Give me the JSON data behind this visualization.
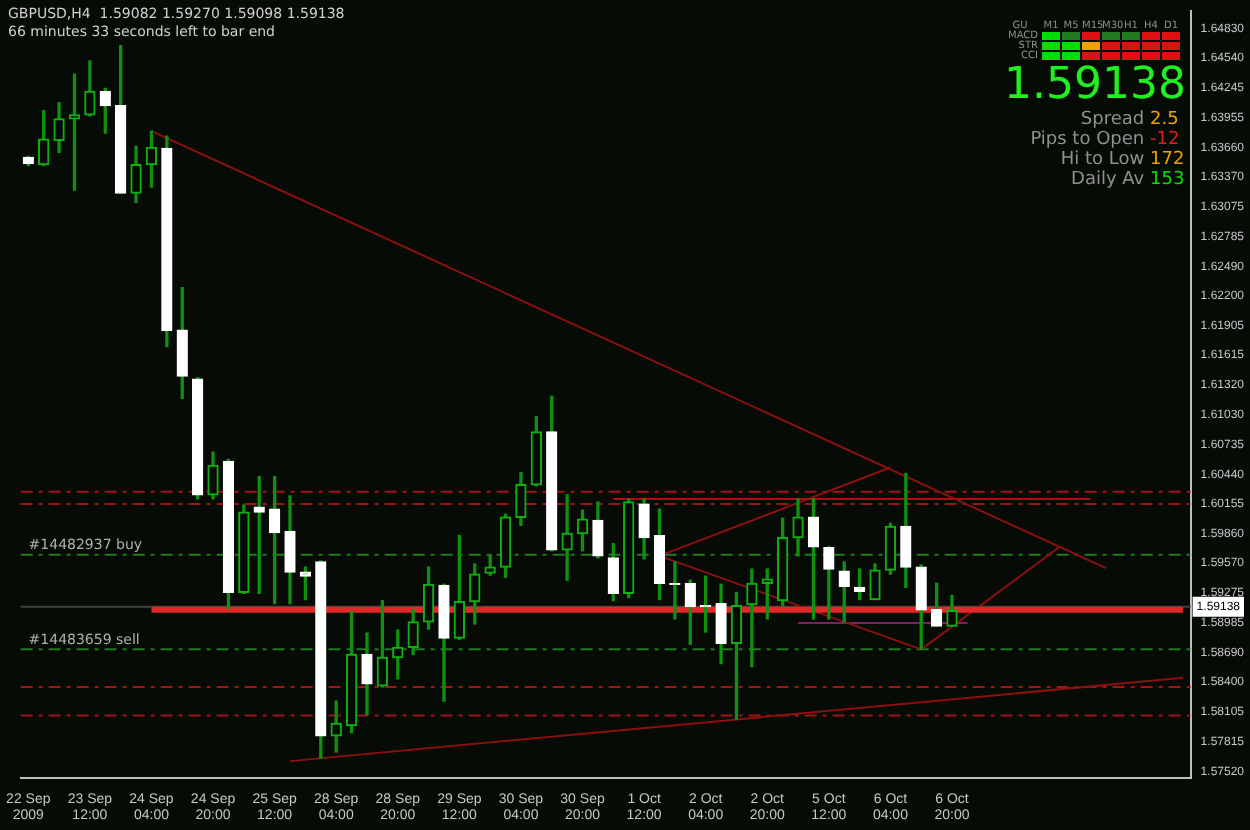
{
  "chart_data": {
    "type": "candlestick",
    "title": "GBPUSD,H4  1.59082 1.59270 1.59098 1.59138",
    "subtitle": "66 minutes 33 seconds left to bar end",
    "categories": [
      "22 Sep 2009",
      null,
      null,
      null,
      "23 Sep 12:00",
      null,
      null,
      null,
      "24 Sep 04:00",
      null,
      null,
      null,
      "24 Sep 20:00",
      null,
      null,
      null,
      "25 Sep 12:00",
      null,
      null,
      null,
      "28 Sep 04:00",
      null,
      null,
      null,
      "28 Sep 20:00",
      null,
      null,
      null,
      "29 Sep 12:00",
      null,
      null,
      null,
      "30 Sep 04:00",
      null,
      null,
      null,
      "30 Sep 20:00",
      null,
      null,
      null,
      "1 Oct 12:00",
      null,
      null,
      null,
      "2 Oct 04:00",
      null,
      null,
      null,
      "2 Oct 20:00",
      null,
      null,
      null,
      "5 Oct 12:00",
      null,
      null,
      null,
      "6 Oct 04:00",
      null,
      null,
      null,
      "6 Oct 20:00",
      null,
      null,
      null,
      null,
      null,
      null,
      null,
      null,
      null,
      null,
      null,
      null,
      null,
      null,
      null
    ],
    "ohlc": [
      [
        1.6356,
        1.6357,
        1.6348,
        1.635
      ],
      [
        1.6349,
        1.6402,
        1.6348,
        1.6374
      ],
      [
        1.6373,
        1.641,
        1.6361,
        1.6394
      ],
      [
        1.6394,
        1.6438,
        1.6324,
        1.6398
      ],
      [
        1.6398,
        1.6451,
        1.6397,
        1.6421
      ],
      [
        1.6421,
        1.6424,
        1.638,
        1.6407
      ],
      [
        1.6407,
        1.6466,
        1.6321,
        1.6321
      ],
      [
        1.6321,
        1.6367,
        1.6312,
        1.6349
      ],
      [
        1.6349,
        1.6382,
        1.6327,
        1.6366
      ],
      [
        1.6365,
        1.6377,
        1.617,
        1.6186
      ],
      [
        1.6186,
        1.6228,
        1.6119,
        1.6141
      ],
      [
        1.6138,
        1.6139,
        1.602,
        1.6024
      ],
      [
        1.6024,
        1.6066,
        1.602,
        1.6053
      ],
      [
        1.6057,
        1.6059,
        1.5912,
        1.5928
      ],
      [
        1.5928,
        1.6014,
        1.5927,
        1.6007
      ],
      [
        1.6012,
        1.6042,
        1.5927,
        1.6007
      ],
      [
        1.601,
        1.6042,
        1.5917,
        1.5987
      ],
      [
        1.5988,
        1.6023,
        1.5917,
        1.5948
      ],
      [
        1.5948,
        1.5953,
        1.5921,
        1.5944
      ],
      [
        1.5958,
        1.5959,
        1.5765,
        1.5787
      ],
      [
        1.5787,
        1.5821,
        1.5771,
        1.5799
      ],
      [
        1.5797,
        1.5909,
        1.579,
        1.5867
      ],
      [
        1.5867,
        1.5888,
        1.5808,
        1.5838
      ],
      [
        1.5836,
        1.592,
        1.5835,
        1.5864
      ],
      [
        1.5864,
        1.5891,
        1.5843,
        1.5874
      ],
      [
        1.5874,
        1.5911,
        1.5867,
        1.5899
      ],
      [
        1.5899,
        1.5953,
        1.5892,
        1.5936
      ],
      [
        1.5935,
        1.5936,
        1.5821,
        1.5883
      ],
      [
        1.5883,
        1.5984,
        1.5882,
        1.5919
      ],
      [
        1.5919,
        1.5956,
        1.5897,
        1.5946
      ],
      [
        1.5947,
        1.5965,
        1.5945,
        1.5953
      ],
      [
        1.5953,
        1.6005,
        1.5943,
        1.6002
      ],
      [
        1.6002,
        1.6046,
        1.5994,
        1.6034
      ],
      [
        1.6034,
        1.6101,
        1.6033,
        1.6086
      ],
      [
        1.6086,
        1.6121,
        1.5969,
        1.597
      ],
      [
        1.597,
        1.6024,
        1.594,
        1.5986
      ],
      [
        1.5986,
        1.6009,
        1.5969,
        1.6
      ],
      [
        1.5999,
        1.6017,
        1.5962,
        1.5964
      ],
      [
        1.5962,
        1.5976,
        1.592,
        1.5927
      ],
      [
        1.5927,
        1.602,
        1.5923,
        1.6017
      ],
      [
        1.6015,
        1.602,
        1.5961,
        1.5982
      ],
      [
        1.5984,
        1.601,
        1.5921,
        1.5937
      ],
      [
        1.5937,
        1.5958,
        1.5902,
        1.5936
      ],
      [
        1.5937,
        1.594,
        1.5877,
        1.5914
      ],
      [
        1.5915,
        1.5944,
        1.5889,
        1.5914
      ],
      [
        1.5917,
        1.5936,
        1.5858,
        1.5878
      ],
      [
        1.5878,
        1.5928,
        1.5803,
        1.5915
      ],
      [
        1.5916,
        1.5951,
        1.5855,
        1.5937
      ],
      [
        1.5937,
        1.5951,
        1.5902,
        1.5941
      ],
      [
        1.592,
        1.6001,
        1.5915,
        1.5982
      ],
      [
        1.5982,
        1.602,
        1.5964,
        1.6002
      ],
      [
        1.6002,
        1.602,
        1.5902,
        1.5973
      ],
      [
        1.5972,
        1.5973,
        1.5902,
        1.5951
      ],
      [
        1.5949,
        1.5958,
        1.5899,
        1.5934
      ],
      [
        1.5933,
        1.5951,
        1.5921,
        1.5929
      ],
      [
        1.5921,
        1.5956,
        1.5921,
        1.595
      ],
      [
        1.595,
        1.5996,
        1.5946,
        1.5993
      ],
      [
        1.5993,
        1.6045,
        1.5933,
        1.5953
      ],
      [
        1.5953,
        1.5955,
        1.5872,
        1.5911
      ],
      [
        1.5911,
        1.5937,
        1.5895,
        1.5895
      ],
      [
        1.5895,
        1.5925,
        1.5895,
        1.591
      ],
      null,
      null,
      null,
      null,
      null,
      null,
      null,
      null,
      null,
      null,
      null,
      null,
      null,
      null,
      null
    ],
    "series": [
      {
        "type": "line",
        "color": "#8b1010",
        "values": [
          null,
          null,
          null,
          null,
          null,
          null,
          null,
          null,
          1.6382,
          null,
          null,
          null,
          null,
          null,
          null,
          null,
          null,
          null,
          null,
          null,
          null,
          null,
          null,
          null,
          null,
          null,
          null,
          null,
          null,
          null,
          null,
          null,
          null,
          null,
          null,
          null,
          null,
          null,
          null,
          null,
          null,
          null,
          null,
          null,
          null,
          null,
          null,
          null,
          null,
          null,
          null,
          null,
          null,
          null,
          null,
          null,
          null,
          null,
          null,
          null,
          null,
          null,
          null,
          null,
          null,
          null,
          null,
          null,
          null,
          null,
          1.5952,
          null,
          null,
          null,
          null,
          null
        ]
      },
      {
        "type": "line",
        "color": "#8b1010",
        "values": [
          null,
          null,
          null,
          null,
          null,
          null,
          null,
          null,
          null,
          null,
          null,
          null,
          null,
          null,
          null,
          null,
          null,
          1.5762,
          null,
          null,
          null,
          null,
          null,
          null,
          null,
          null,
          null,
          null,
          null,
          null,
          null,
          null,
          null,
          null,
          null,
          null,
          null,
          null,
          null,
          null,
          null,
          null,
          null,
          null,
          null,
          null,
          null,
          null,
          null,
          null,
          null,
          null,
          null,
          null,
          null,
          null,
          null,
          null,
          null,
          null,
          null,
          null,
          null,
          null,
          null,
          null,
          null,
          null,
          null,
          null,
          null,
          null,
          null,
          null,
          null,
          1.5844
        ]
      },
      {
        "type": "line",
        "color": "#e02828",
        "values": [
          null,
          null,
          null,
          null,
          null,
          null,
          null,
          null,
          1.5911,
          null,
          null,
          null,
          null,
          null,
          null,
          null,
          null,
          null,
          null,
          null,
          null,
          null,
          null,
          null,
          null,
          null,
          null,
          null,
          null,
          null,
          null,
          null,
          null,
          null,
          null,
          null,
          null,
          null,
          null,
          null,
          null,
          null,
          null,
          null,
          null,
          null,
          null,
          null,
          null,
          null,
          null,
          null,
          null,
          null,
          null,
          null,
          null,
          null,
          null,
          null,
          null,
          null,
          null,
          null,
          null,
          null,
          null,
          null,
          null,
          null,
          null,
          null,
          null,
          null,
          null,
          1.5911
        ]
      },
      {
        "type": "line",
        "color": "#a01414",
        "values": [
          null,
          null,
          null,
          null,
          null,
          null,
          null,
          null,
          null,
          null,
          null,
          null,
          null,
          null,
          null,
          null,
          null,
          null,
          null,
          null,
          null,
          null,
          null,
          null,
          null,
          null,
          null,
          null,
          null,
          null,
          null,
          null,
          null,
          null,
          null,
          null,
          null,
          null,
          1.602,
          null,
          null,
          null,
          null,
          null,
          null,
          null,
          null,
          null,
          null,
          null,
          null,
          null,
          null,
          null,
          null,
          null,
          null,
          null,
          null,
          null,
          null,
          null,
          null,
          null,
          null,
          null,
          null,
          null,
          null,
          1.602,
          null,
          null,
          null,
          null,
          null,
          null
        ]
      },
      {
        "type": "line",
        "color": "#8b1010",
        "values": [
          null,
          null,
          null,
          null,
          null,
          null,
          null,
          null,
          null,
          null,
          null,
          null,
          null,
          null,
          null,
          null,
          null,
          null,
          null,
          null,
          null,
          null,
          null,
          null,
          null,
          null,
          null,
          null,
          null,
          null,
          null,
          null,
          null,
          null,
          null,
          null,
          null,
          null,
          null,
          null,
          null,
          1.5964,
          null,
          null,
          null,
          null,
          null,
          null,
          null,
          null,
          null,
          null,
          null,
          null,
          null,
          null,
          1.6051,
          null,
          null,
          null,
          null,
          null,
          null,
          null,
          null,
          null,
          null,
          null,
          null,
          null,
          null,
          null,
          null,
          null,
          null,
          null
        ]
      },
      {
        "type": "line",
        "color": "#8b1010",
        "values": [
          null,
          null,
          null,
          null,
          null,
          null,
          null,
          null,
          null,
          null,
          null,
          null,
          null,
          null,
          null,
          null,
          null,
          null,
          null,
          null,
          null,
          null,
          null,
          null,
          null,
          null,
          null,
          null,
          null,
          null,
          null,
          null,
          null,
          null,
          null,
          null,
          null,
          null,
          null,
          null,
          null,
          1.5964,
          null,
          null,
          null,
          null,
          null,
          null,
          null,
          null,
          null,
          null,
          null,
          null,
          null,
          null,
          null,
          null,
          1.5872,
          null,
          null,
          null,
          null,
          null,
          null,
          null,
          null,
          null,
          null,
          null,
          null,
          null,
          null,
          null,
          null,
          null
        ]
      },
      {
        "type": "line",
        "color": "#8b1010",
        "values": [
          null,
          null,
          null,
          null,
          null,
          null,
          null,
          null,
          null,
          null,
          null,
          null,
          null,
          null,
          null,
          null,
          null,
          null,
          null,
          null,
          null,
          null,
          null,
          null,
          null,
          null,
          null,
          null,
          null,
          null,
          null,
          null,
          null,
          null,
          null,
          null,
          null,
          null,
          null,
          null,
          null,
          null,
          null,
          null,
          null,
          null,
          null,
          null,
          null,
          null,
          null,
          null,
          null,
          null,
          null,
          null,
          null,
          null,
          1.5872,
          null,
          null,
          null,
          null,
          null,
          null,
          null,
          null,
          1.5973,
          null,
          null,
          null,
          null,
          null,
          null,
          null,
          null
        ]
      },
      {
        "type": "line",
        "color": "#802060",
        "values": [
          null,
          null,
          null,
          null,
          null,
          null,
          null,
          null,
          null,
          null,
          null,
          null,
          null,
          null,
          null,
          null,
          null,
          null,
          null,
          null,
          null,
          null,
          null,
          null,
          null,
          null,
          null,
          null,
          null,
          null,
          null,
          null,
          null,
          null,
          null,
          null,
          null,
          null,
          null,
          null,
          null,
          null,
          null,
          null,
          null,
          null,
          null,
          null,
          null,
          null,
          1.5898,
          null,
          null,
          null,
          null,
          null,
          null,
          null,
          null,
          null,
          null,
          1.5898,
          null,
          null,
          null,
          null,
          null,
          null,
          null,
          null,
          null,
          null,
          null,
          null,
          null,
          null
        ]
      }
    ],
    "ylim": [
      1.5745,
      1.65
    ],
    "yticks": [
      {
        "value": 1.6483,
        "label": "1.64830"
      },
      {
        "value": 1.6454,
        "label": "1.64540"
      },
      1.64245,
      1.63955,
      {
        "value": 1.6366,
        "label": "1.63660"
      },
      {
        "value": 1.6337,
        "label": "1.63370"
      },
      1.63075,
      1.62785,
      {
        "value": 1.6249,
        "label": "1.62490"
      },
      {
        "value": 1.622,
        "label": "1.62200"
      },
      1.61905,
      1.61615,
      {
        "value": 1.6132,
        "label": "1.61320"
      },
      {
        "value": 1.6103,
        "label": "1.61030"
      },
      1.60735,
      {
        "value": 1.6044,
        "label": "1.60440"
      },
      1.60155,
      {
        "value": 1.5986,
        "label": "1.59860"
      },
      {
        "value": 1.5957,
        "label": "1.59570"
      },
      1.59275,
      1.58985,
      {
        "value": 1.5869,
        "label": "1.58690"
      },
      {
        "value": 1.584,
        "label": "1.58400"
      },
      1.58105,
      1.57815,
      {
        "value": 1.5752,
        "label": "1.57520"
      }
    ],
    "ref_lines": [
      {
        "axis": "y",
        "value": 1.6027,
        "color": "#a01414",
        "line_style": "dashed"
      },
      {
        "axis": "y",
        "value": 1.6015,
        "color": "#a01414",
        "line_style": "dashed"
      },
      {
        "axis": "y",
        "value": 1.5965,
        "label": "#14482937 buy",
        "color": "#207a20",
        "line_style": "dashed"
      },
      {
        "axis": "y",
        "value": 1.59138,
        "label": "1.59138",
        "color": "#404040",
        "line_style": "solid"
      },
      {
        "axis": "y",
        "value": 1.5872,
        "label": "#14483659 sell",
        "color": "#207a20",
        "line_style": "dashed"
      },
      {
        "axis": "y",
        "value": 1.5835,
        "color": "#a01414",
        "line_style": "dashed"
      },
      {
        "axis": "y",
        "value": 1.5807,
        "color": "#a01414",
        "line_style": "dashed"
      }
    ],
    "annotations": [
      "GU",
      "M1",
      "M5",
      "M15",
      "M30",
      "H1",
      "H4",
      "D1",
      "MACD",
      "STR",
      "CCI",
      "1.59138",
      "Spread 2.5",
      "Pips to Open -12",
      "Hi to Low 172",
      "Daily Av 153"
    ],
    "legend": false
  }
}
